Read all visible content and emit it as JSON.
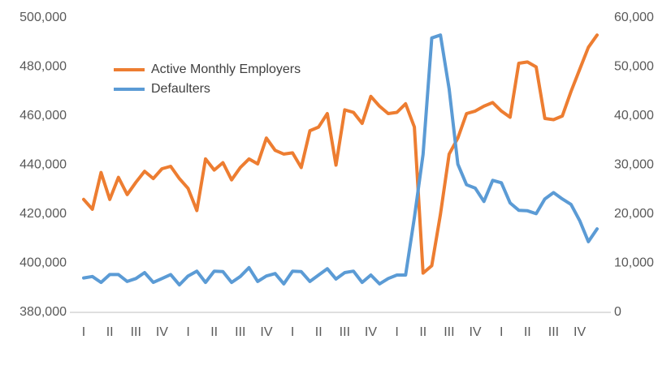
{
  "chart_data": {
    "type": "line",
    "categories": [
      "I",
      null,
      null,
      "II",
      null,
      null,
      "III",
      null,
      null,
      "IV",
      null,
      null,
      "I",
      null,
      null,
      "II",
      null,
      null,
      "III",
      null,
      null,
      "IV",
      null,
      null,
      "I",
      null,
      null,
      "II",
      null,
      null,
      "III",
      null,
      null,
      "IV",
      null,
      null,
      "I",
      null,
      null,
      "II",
      null,
      null,
      "III",
      null,
      null,
      "IV",
      null,
      null,
      "I",
      null,
      null,
      "II",
      null,
      null,
      "III",
      null,
      null,
      "IV",
      null,
      null
    ],
    "series": [
      {
        "name": "Active Monthly Employers",
        "color": "#ed7d31",
        "values": [
          426000,
          422000,
          437000,
          426000,
          435000,
          428000,
          433000,
          437500,
          434500,
          438500,
          439500,
          434500,
          430500,
          421500,
          442500,
          438000,
          441000,
          434000,
          439000,
          442500,
          440500,
          451000,
          446000,
          444500,
          445000,
          439000,
          454000,
          455500,
          461000,
          440000,
          462500,
          461500,
          457000,
          468000,
          464000,
          461000,
          461500,
          465000,
          455500,
          396000,
          399000,
          420000,
          444500,
          451000,
          461000,
          462000,
          464000,
          465500,
          462000,
          459500,
          481500,
          482000,
          480000,
          459000,
          458500,
          460000,
          470000,
          479000,
          488000,
          493000
        ]
      },
      {
        "name": "Defaulters",
        "color": "#5b9bd5",
        "axis": "y2",
        "values": [
          7000,
          7300,
          6100,
          7700,
          7700,
          6300,
          6900,
          8100,
          6100,
          6900,
          7700,
          5600,
          7400,
          8400,
          6100,
          8400,
          8300,
          6100,
          7300,
          9100,
          6300,
          7400,
          7900,
          5800,
          8400,
          8300,
          6300,
          7600,
          8900,
          6800,
          8100,
          8400,
          6100,
          7600,
          5800,
          6900,
          7600,
          7600,
          19300,
          32200,
          55900,
          56500,
          45500,
          30200,
          26000,
          25300,
          22600,
          26900,
          26400,
          22300,
          20800,
          20700,
          20100,
          23100,
          24400,
          23100,
          22000,
          18700,
          14400,
          17000
        ]
      }
    ],
    "ylim": [
      380000,
      500000
    ],
    "yticks": [
      {
        "value": 380000,
        "label": "380,000"
      },
      {
        "value": 400000,
        "label": "400,000"
      },
      {
        "value": 420000,
        "label": "420,000"
      },
      {
        "value": 440000,
        "label": "440,000"
      },
      {
        "value": 460000,
        "label": "460,000"
      },
      {
        "value": 480000,
        "label": "480,000"
      },
      {
        "value": 500000,
        "label": "500,000"
      }
    ],
    "y2lim": [
      0,
      60000
    ],
    "y2ticks": [
      0,
      {
        "value": 10000,
        "label": "10,000"
      },
      {
        "value": 20000,
        "label": "20,000"
      },
      {
        "value": 30000,
        "label": "30,000"
      },
      {
        "value": 40000,
        "label": "40,000"
      },
      {
        "value": 50000,
        "label": "50,000"
      },
      {
        "value": 60000,
        "label": "60,000"
      }
    ],
    "legend": "top-left"
  }
}
